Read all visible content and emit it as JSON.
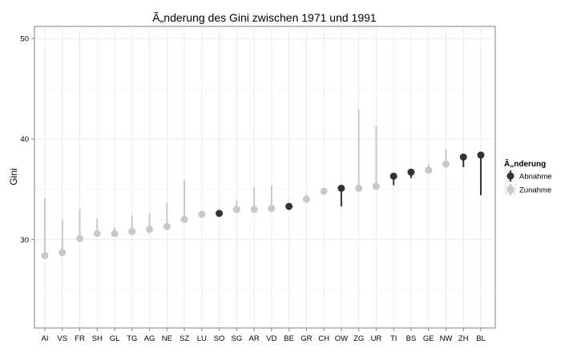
{
  "chart_data": {
    "type": "scatter",
    "title": "Ã„nderung des Gini zwischen 1971 und 1991",
    "xlabel": "",
    "ylabel": "Gini",
    "ylim": [
      21.2,
      51.2
    ],
    "yticks": [
      30,
      40,
      50
    ],
    "grid": true,
    "legend_position": "right",
    "legend": {
      "title": "Ã„nderung",
      "entries": [
        {
          "label": "Abnahme",
          "color": "#333333"
        },
        {
          "label": "Zunahme",
          "color": "#c8c8c8"
        }
      ]
    },
    "categories": [
      "AI",
      "VS",
      "FR",
      "SH",
      "GL",
      "TG",
      "AG",
      "NE",
      "SZ",
      "LU",
      "SO",
      "SG",
      "AR",
      "VD",
      "BE",
      "GR",
      "CH",
      "OW",
      "ZG",
      "UR",
      "TI",
      "BS",
      "GE",
      "NW",
      "ZH",
      "BL"
    ],
    "points": [
      {
        "canton": "AI",
        "gini1991": 28.4,
        "gini1971": 34.1,
        "change": "Zunahme"
      },
      {
        "canton": "VS",
        "gini1991": 28.7,
        "gini1971": 32.0,
        "change": "Zunahme"
      },
      {
        "canton": "FR",
        "gini1991": 30.1,
        "gini1971": 33.0,
        "change": "Zunahme"
      },
      {
        "canton": "SH",
        "gini1991": 30.6,
        "gini1971": 32.1,
        "change": "Zunahme"
      },
      {
        "canton": "GL",
        "gini1991": 30.6,
        "gini1971": 31.2,
        "change": "Zunahme"
      },
      {
        "canton": "TG",
        "gini1991": 30.8,
        "gini1971": 32.4,
        "change": "Zunahme"
      },
      {
        "canton": "AG",
        "gini1991": 31.0,
        "gini1971": 32.6,
        "change": "Zunahme"
      },
      {
        "canton": "NE",
        "gini1991": 31.3,
        "gini1971": 33.7,
        "change": "Zunahme"
      },
      {
        "canton": "SZ",
        "gini1991": 32.0,
        "gini1971": 35.9,
        "change": "Zunahme"
      },
      {
        "canton": "LU",
        "gini1991": 32.5,
        "gini1971": 32.7,
        "change": "Zunahme"
      },
      {
        "canton": "SO",
        "gini1991": 32.6,
        "gini1971": 32.4,
        "change": "Abnahme"
      },
      {
        "canton": "SG",
        "gini1991": 33.0,
        "gini1971": 33.9,
        "change": "Zunahme"
      },
      {
        "canton": "AR",
        "gini1991": 33.0,
        "gini1971": 35.2,
        "change": "Zunahme"
      },
      {
        "canton": "VD",
        "gini1991": 33.1,
        "gini1971": 35.4,
        "change": "Zunahme"
      },
      {
        "canton": "BE",
        "gini1991": 33.3,
        "gini1971": 33.1,
        "change": "Abnahme"
      },
      {
        "canton": "GR",
        "gini1991": 34.0,
        "gini1971": 34.5,
        "change": "Zunahme"
      },
      {
        "canton": "CH",
        "gini1991": 34.8,
        "gini1971": 35.0,
        "change": "Zunahme"
      },
      {
        "canton": "OW",
        "gini1991": 35.1,
        "gini1971": 33.3,
        "change": "Abnahme"
      },
      {
        "canton": "ZG",
        "gini1991": 35.1,
        "gini1971": 42.9,
        "change": "Zunahme"
      },
      {
        "canton": "UR",
        "gini1991": 35.3,
        "gini1971": 41.3,
        "change": "Zunahme"
      },
      {
        "canton": "TI",
        "gini1991": 36.3,
        "gini1971": 35.4,
        "change": "Abnahme"
      },
      {
        "canton": "BS",
        "gini1991": 36.7,
        "gini1971": 36.1,
        "change": "Abnahme"
      },
      {
        "canton": "GE",
        "gini1991": 36.9,
        "gini1971": 37.5,
        "change": "Zunahme"
      },
      {
        "canton": "NW",
        "gini1991": 37.5,
        "gini1971": 39.0,
        "change": "Zunahme"
      },
      {
        "canton": "ZH",
        "gini1991": 38.2,
        "gini1971": 37.2,
        "change": "Abnahme"
      },
      {
        "canton": "BL",
        "gini1991": 38.4,
        "gini1971": 34.4,
        "change": "Abnahme"
      }
    ]
  }
}
